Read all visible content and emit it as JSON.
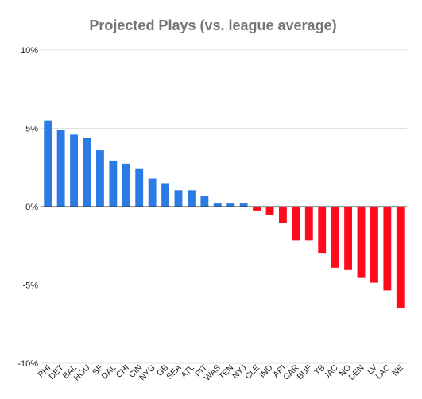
{
  "chart_data": {
    "type": "bar",
    "title": "Projected Plays (vs. league average)",
    "xlabel": "",
    "ylabel": "",
    "ylim": [
      -10,
      10
    ],
    "yticks": [
      {
        "value": 10,
        "label": "10%"
      },
      {
        "value": 5,
        "label": "5%"
      },
      {
        "value": 0,
        "label": "0%"
      },
      {
        "value": -5,
        "label": "-5%"
      },
      {
        "value": -10,
        "label": "-10%"
      }
    ],
    "grid": true,
    "legend": "none",
    "positive_color": "#2a7be4",
    "negative_color": "#ff0a1a",
    "categories": [
      "PHI",
      "DET",
      "BAL",
      "HOU",
      "SF",
      "DAL",
      "CHI",
      "CIN",
      "NYG",
      "GB",
      "SEA",
      "ATL",
      "PIT",
      "WAS",
      "TEN",
      "NYJ",
      "CLE",
      "IND",
      "ARI",
      "CAR",
      "BUF",
      "TB",
      "JAC",
      "NO",
      "DEN",
      "LV",
      "LAC",
      "NE"
    ],
    "values": [
      5.5,
      4.9,
      4.6,
      4.4,
      3.6,
      2.95,
      2.75,
      2.45,
      1.8,
      1.5,
      1.05,
      1.05,
      0.7,
      0.2,
      0.2,
      0.2,
      -0.25,
      -0.55,
      -1.05,
      -2.15,
      -2.15,
      -2.95,
      -3.9,
      -4.05,
      -4.55,
      -4.85,
      -5.35,
      -6.45
    ]
  }
}
